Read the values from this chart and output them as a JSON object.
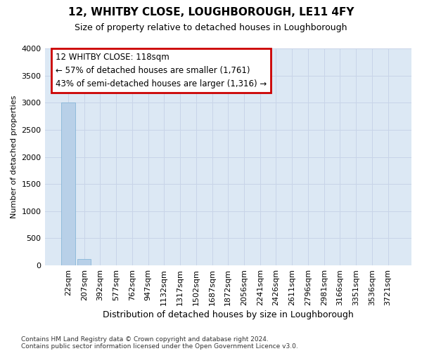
{
  "title": "12, WHITBY CLOSE, LOUGHBOROUGH, LE11 4FY",
  "subtitle": "Size of property relative to detached houses in Loughborough",
  "xlabel": "Distribution of detached houses by size in Loughborough",
  "ylabel": "Number of detached properties",
  "footnote1": "Contains HM Land Registry data © Crown copyright and database right 2024.",
  "footnote2": "Contains public sector information licensed under the Open Government Licence v3.0.",
  "categories": [
    "22sqm",
    "207sqm",
    "392sqm",
    "577sqm",
    "762sqm",
    "947sqm",
    "1132sqm",
    "1317sqm",
    "1502sqm",
    "1687sqm",
    "1872sqm",
    "2056sqm",
    "2241sqm",
    "2426sqm",
    "2611sqm",
    "2796sqm",
    "2981sqm",
    "3166sqm",
    "3351sqm",
    "3536sqm",
    "3721sqm"
  ],
  "values": [
    3000,
    120,
    0,
    0,
    0,
    0,
    0,
    0,
    0,
    0,
    0,
    0,
    0,
    0,
    0,
    0,
    0,
    0,
    0,
    0,
    0
  ],
  "bar_color": "#b8d0e8",
  "bar_edge_color": "#7aafd4",
  "ylim": [
    0,
    4000
  ],
  "yticks": [
    0,
    500,
    1000,
    1500,
    2000,
    2500,
    3000,
    3500,
    4000
  ],
  "property_label": "12 WHITBY CLOSE: 118sqm",
  "annotation_line1": "← 57% of detached houses are smaller (1,761)",
  "annotation_line2": "43% of semi-detached houses are larger (1,316) →",
  "annotation_box_color": "#ffffff",
  "annotation_box_edge_color": "#cc0000",
  "grid_color": "#c8d4e8",
  "background_color": "#dce8f4",
  "fig_background": "#ffffff"
}
